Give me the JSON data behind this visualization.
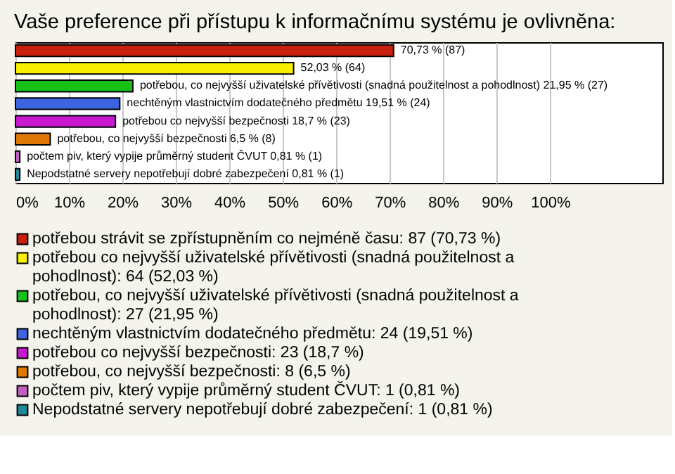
{
  "chart_data": {
    "type": "bar",
    "orientation": "horizontal",
    "title": "Vaše preference při přístupu k informačnímu systému je ovlivněna:",
    "categories": [
      null,
      null,
      null,
      null,
      null,
      null,
      null,
      null
    ],
    "series": [
      {
        "name": "potřebou strávit se zpřístupněním co nejméně času: 87 (70,73 %)",
        "color": "#c8200c",
        "values": [
          70.73,
          null,
          null,
          null,
          null,
          null,
          null,
          null
        ],
        "value_labels": [
          "70,73 % (87)",
          null,
          null,
          null,
          null,
          null,
          null,
          null
        ]
      },
      {
        "name": "potřebou co nejvyšší uživatelské přívětivosti (snadná použitelnost a pohodlnost): 64 (52,03 %)",
        "color": "#f8f000",
        "values": [
          null,
          52.03,
          null,
          null,
          null,
          null,
          null,
          null
        ],
        "value_labels": [
          null,
          "52,03 % (64)",
          null,
          null,
          null,
          null,
          null,
          null
        ]
      },
      {
        "name": "potřebou, co nejvyšší uživatelské přívětivosti (snadná použitelnost a pohodlnost): 27 (21,95 %)",
        "color": "#18c018",
        "values": [
          null,
          null,
          21.95,
          null,
          null,
          null,
          null,
          null
        ],
        "value_labels": [
          null,
          null,
          "potřebou, co nejvyšší uživatelské přívětivosti (snadná použitelnost a pohodlnost) 21,95 % (27)",
          null,
          null,
          null,
          null,
          null
        ]
      },
      {
        "name": "nechtěným vlastnictvím dodatečného předmětu: 24 (19,51 %)",
        "color": "#3c64e0",
        "values": [
          null,
          null,
          null,
          19.51,
          null,
          null,
          null,
          null
        ],
        "value_labels": [
          null,
          null,
          null,
          "nechtěným vlastnictvím dodatečného předmětu 19,51 % (24)",
          null,
          null,
          null,
          null
        ]
      },
      {
        "name": "potřebou co nejvyšší bezpečnosti: 23 (18,7 %)",
        "color": "#c818d0",
        "values": [
          null,
          null,
          null,
          null,
          18.7,
          null,
          null,
          null
        ],
        "value_labels": [
          null,
          null,
          null,
          null,
          "potřebou co nejvyšší bezpečnosti 18,7 % (23)",
          null,
          null,
          null
        ]
      },
      {
        "name": "potřebou, co nejvyšší bezpečnosti: 8 (6,5 %)",
        "color": "#e07808",
        "values": [
          null,
          null,
          null,
          null,
          null,
          6.5,
          null,
          null
        ],
        "value_labels": [
          null,
          null,
          null,
          null,
          null,
          "potřebou, co nejvyšší bezpečnosti 6,5 % (8)",
          null,
          null
        ]
      },
      {
        "name": "počtem piv, který vypije průměrný student ČVUT: 1 (0,81 %)",
        "color": "#c060c0",
        "values": [
          null,
          null,
          null,
          null,
          null,
          null,
          0.81,
          null
        ],
        "value_labels": [
          null,
          null,
          null,
          null,
          null,
          null,
          "počtem piv, který vypije průměrný student ČVUT 0,81 % (1)",
          null
        ]
      },
      {
        "name": "Nepodstatné servery nepotřebují dobré zabezpečení: 1 (0,81 %)",
        "color": "#208898",
        "values": [
          null,
          null,
          null,
          null,
          null,
          null,
          null,
          0.81
        ],
        "value_labels": [
          null,
          null,
          null,
          null,
          null,
          null,
          null,
          "Nepodstatné servery nepotřebují dobré zabezpečení 0,81 % (1)"
        ]
      }
    ],
    "xlim": [
      0,
      121
    ],
    "xticks": [
      {
        "value": 0,
        "label": "0%"
      },
      {
        "value": 10,
        "label": "10%"
      },
      {
        "value": 20,
        "label": "20%"
      },
      {
        "value": 30,
        "label": "30%"
      },
      {
        "value": 40,
        "label": "40%"
      },
      {
        "value": 50,
        "label": "50%"
      },
      {
        "value": 60,
        "label": "60%"
      },
      {
        "value": 70,
        "label": "70%"
      },
      {
        "value": 80,
        "label": "80%"
      },
      {
        "value": 90,
        "label": "90%"
      },
      {
        "value": 100,
        "label": "100%"
      }
    ],
    "grid": "x",
    "legend": "bottom"
  }
}
